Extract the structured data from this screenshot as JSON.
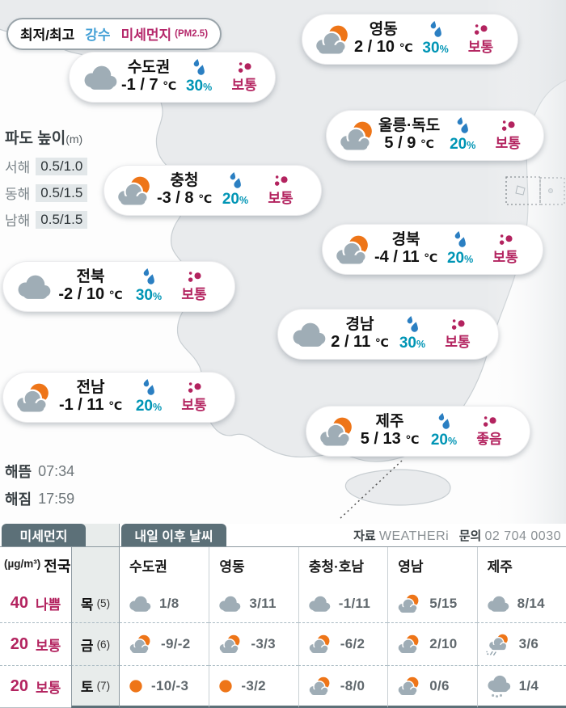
{
  "legend": {
    "min_max": "최저/최고",
    "precip": "강수",
    "dust": "미세먼지",
    "dust_unit": "(PM2.5)"
  },
  "wave": {
    "title": "파도 높이",
    "unit": "(m)",
    "rows": [
      {
        "label": "서해",
        "value": "0.5/1.0"
      },
      {
        "label": "동해",
        "value": "0.5/1.5"
      },
      {
        "label": "남해",
        "value": "0.5/1.5"
      }
    ]
  },
  "sun": {
    "rise_label": "해뜸",
    "rise_time": "07:34",
    "set_label": "해짐",
    "set_time": "17:59"
  },
  "source": {
    "label": "자료",
    "provider": "WEATHERi",
    "contact_label": "문의",
    "phone": "02 704 0030"
  },
  "cards": [
    {
      "region": "수도권",
      "icon": "cloud-icon",
      "temp": "-1 / 7",
      "unit": "℃",
      "precip_pct": "30",
      "dust_grade": "보통"
    },
    {
      "region": "영동",
      "icon": "sun-cloud-icon",
      "temp": "2 / 10",
      "unit": "℃",
      "precip_pct": "30",
      "dust_grade": "보통"
    },
    {
      "region": "울릉·독도",
      "icon": "sun-cloud-icon",
      "temp": "5 / 9",
      "unit": "℃",
      "precip_pct": "20",
      "dust_grade": "보통"
    },
    {
      "region": "충청",
      "icon": "sun-cloud-icon",
      "temp": "-3 / 8",
      "unit": "℃",
      "precip_pct": "20",
      "dust_grade": "보통"
    },
    {
      "region": "경북",
      "icon": "sun-cloud-icon",
      "temp": "-4 / 11",
      "unit": "℃",
      "precip_pct": "20",
      "dust_grade": "보통"
    },
    {
      "region": "전북",
      "icon": "cloud-icon",
      "temp": "-2 / 10",
      "unit": "℃",
      "precip_pct": "30",
      "dust_grade": "보통"
    },
    {
      "region": "경남",
      "icon": "cloud-icon",
      "temp": "2 / 11",
      "unit": "℃",
      "precip_pct": "30",
      "dust_grade": "보통"
    },
    {
      "region": "전남",
      "icon": "sun-cloud-icon",
      "temp": "-1 / 11",
      "unit": "℃",
      "precip_pct": "20",
      "dust_grade": "보통"
    },
    {
      "region": "제주",
      "icon": "sun-cloud-icon",
      "temp": "5 / 13",
      "unit": "℃",
      "precip_pct": "20",
      "dust_grade": "좋음"
    }
  ],
  "dust_table": {
    "tab": "미세먼지",
    "header_unit": "(µg/m³)",
    "header_label": "전국",
    "rows": [
      {
        "value": "40",
        "grade": "나쁨"
      },
      {
        "value": "20",
        "grade": "보통"
      },
      {
        "value": "20",
        "grade": "보통"
      }
    ]
  },
  "forecast_table": {
    "tab": "내일 이후 날씨",
    "columns": [
      "수도권",
      "영동",
      "충청·호남",
      "영남",
      "제주"
    ],
    "days": [
      {
        "day": "목",
        "date": "(5)"
      },
      {
        "day": "금",
        "date": "(6)"
      },
      {
        "day": "토",
        "date": "(7)"
      }
    ],
    "cells": [
      [
        {
          "icon": "cloud-icon",
          "temp": "1/8"
        },
        {
          "icon": "cloud-icon",
          "temp": "3/11"
        },
        {
          "icon": "cloud-icon",
          "temp": "-1/11"
        },
        {
          "icon": "sun-cloud-icon",
          "temp": "5/15"
        },
        {
          "icon": "cloud-icon",
          "temp": "8/14"
        }
      ],
      [
        {
          "icon": "sun-cloud-icon",
          "temp": "-9/-2"
        },
        {
          "icon": "sun-cloud-icon",
          "temp": "-3/3"
        },
        {
          "icon": "sun-cloud-icon",
          "temp": "-6/2"
        },
        {
          "icon": "sun-cloud-icon",
          "temp": "2/10"
        },
        {
          "icon": "rain-sun-cloud-icon",
          "temp": "3/6"
        }
      ],
      [
        {
          "icon": "sun-icon",
          "temp": "-10/-3"
        },
        {
          "icon": "sun-icon",
          "temp": "-3/2"
        },
        {
          "icon": "sun-cloud-icon",
          "temp": "-8/0"
        },
        {
          "icon": "sun-cloud-icon",
          "temp": "0/6"
        },
        {
          "icon": "snow-cloud-icon",
          "temp": "1/4"
        }
      ]
    ]
  },
  "colors": {
    "accent_teal": "#0095b5",
    "accent_magenta": "#b3235f",
    "accent_blue": "#44a0d6",
    "sun_orange": "#ee7518",
    "cloud_gray": "#9fadb6",
    "tab_slate": "#5c7078"
  }
}
